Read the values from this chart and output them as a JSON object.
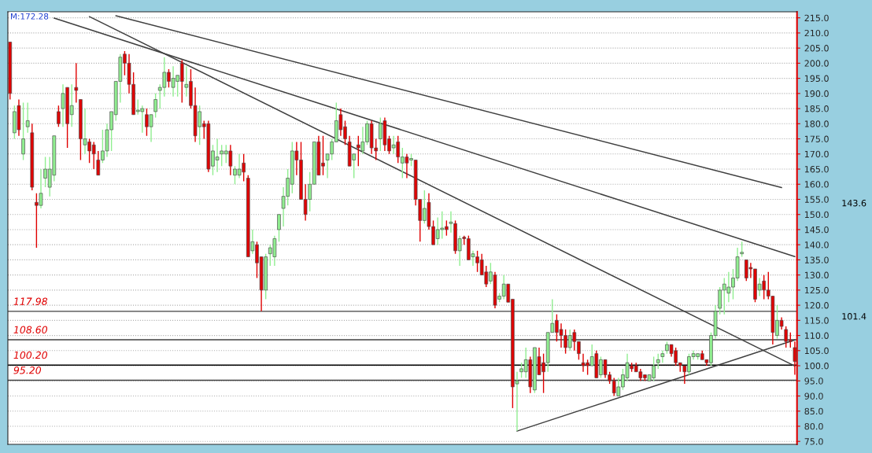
{
  "chart_data": {
    "type": "candlestick",
    "categories": [
      null,
      null,
      null,
      null,
      null,
      null,
      null,
      null,
      null,
      null,
      null,
      null,
      null,
      null,
      null,
      null,
      null,
      null,
      null,
      null,
      null,
      null,
      null,
      null,
      null,
      null,
      null,
      null,
      null,
      null,
      null,
      null,
      null,
      null,
      null,
      null,
      null,
      null,
      null,
      null,
      null,
      null,
      null,
      null,
      null,
      null,
      null,
      null,
      null,
      null,
      null,
      null,
      null,
      null,
      null,
      null,
      null,
      null,
      null,
      null,
      null,
      null,
      null,
      null,
      null,
      null,
      null,
      null,
      null,
      null,
      null,
      null,
      null,
      null,
      null,
      null,
      null,
      null,
      null,
      null,
      null,
      null,
      null,
      null,
      null,
      null,
      null,
      null,
      null,
      null,
      null,
      null,
      null,
      null,
      null,
      null,
      null,
      null,
      null,
      null,
      null,
      null,
      null,
      null,
      null,
      null,
      null,
      null,
      null,
      null,
      null,
      null,
      null,
      null,
      null,
      null,
      null,
      null,
      null,
      null,
      null,
      null,
      null,
      null,
      null,
      null,
      null,
      null,
      null,
      null,
      null,
      null,
      null,
      null,
      null,
      null,
      null,
      null,
      null,
      null,
      null,
      null,
      null,
      null,
      null,
      null,
      null,
      null,
      null,
      null,
      null,
      null,
      null,
      null,
      null,
      null,
      null,
      null,
      null,
      null,
      null,
      null,
      null,
      null,
      null,
      null,
      null,
      null,
      null,
      null,
      null,
      null,
      null,
      null,
      null,
      null,
      null,
      null,
      null
    ],
    "ohlc": [
      [
        207,
        207,
        188,
        190
      ],
      [
        177,
        186,
        175,
        184
      ],
      [
        186,
        188,
        176,
        178
      ],
      [
        170,
        187,
        168,
        175
      ],
      [
        179,
        187,
        177,
        181
      ],
      [
        177,
        180,
        158,
        159
      ],
      [
        154,
        157,
        139,
        153
      ],
      [
        153,
        165,
        152,
        157
      ],
      [
        162,
        169,
        159,
        165
      ],
      [
        159,
        169,
        156,
        165
      ],
      [
        163,
        176,
        161,
        176
      ],
      [
        184,
        186,
        179,
        180
      ],
      [
        185,
        193,
        179,
        190
      ],
      [
        192,
        192,
        172,
        180
      ],
      [
        183,
        193,
        179,
        186
      ],
      [
        192,
        200,
        187,
        191
      ],
      [
        188,
        188,
        168,
        175
      ],
      [
        173,
        185,
        170,
        175
      ],
      [
        174,
        175,
        167,
        171
      ],
      [
        173,
        174,
        165,
        170
      ],
      [
        168,
        171,
        163,
        163
      ],
      [
        168,
        178,
        167,
        171
      ],
      [
        171,
        180,
        169,
        178
      ],
      [
        178,
        184,
        171,
        184
      ],
      [
        183,
        194,
        181,
        194
      ],
      [
        194,
        203,
        187,
        202
      ],
      [
        203,
        204,
        196,
        200
      ],
      [
        200,
        203,
        190,
        193
      ],
      [
        193,
        197,
        183,
        183
      ],
      [
        184,
        188,
        183,
        184.5
      ],
      [
        184,
        186,
        177,
        185
      ],
      [
        183,
        185,
        176,
        179
      ],
      [
        179,
        183,
        174,
        183
      ],
      [
        184,
        190,
        182,
        188
      ],
      [
        191,
        193,
        185,
        192
      ],
      [
        192,
        202,
        189,
        197
      ],
      [
        197,
        198,
        192,
        194
      ],
      [
        192,
        199,
        189,
        195
      ],
      [
        194,
        196,
        189,
        196
      ],
      [
        200,
        201,
        187,
        194
      ],
      [
        192,
        199,
        189,
        193
      ],
      [
        194,
        198,
        185,
        186
      ],
      [
        186,
        192,
        174,
        176
      ],
      [
        179,
        186,
        173,
        184
      ],
      [
        180,
        181,
        175,
        179
      ],
      [
        180,
        181,
        164,
        165
      ],
      [
        166,
        173,
        163,
        171
      ],
      [
        168,
        175,
        164,
        169
      ],
      [
        170,
        173,
        166,
        171
      ],
      [
        170,
        173,
        167,
        171
      ],
      [
        171,
        173,
        163,
        166
      ],
      [
        163,
        166,
        160,
        165
      ],
      [
        163,
        170,
        162,
        165
      ],
      [
        167,
        170,
        161,
        164
      ],
      [
        162,
        163,
        136,
        136
      ],
      [
        138,
        145,
        137,
        141
      ],
      [
        140,
        141,
        129,
        134
      ],
      [
        136,
        136,
        118,
        125
      ],
      [
        125,
        137,
        122,
        136
      ],
      [
        137,
        140,
        133,
        139
      ],
      [
        136,
        143,
        133,
        142
      ],
      [
        145,
        150,
        141,
        150
      ],
      [
        152,
        159,
        146,
        156
      ],
      [
        156,
        165,
        153,
        162
      ],
      [
        160,
        174,
        157,
        171
      ],
      [
        171,
        174,
        163,
        168
      ],
      [
        168,
        174,
        155,
        155
      ],
      [
        155,
        160,
        148,
        150
      ],
      [
        155,
        164,
        151,
        160
      ],
      [
        160,
        174,
        160,
        174
      ],
      [
        174,
        176,
        163,
        163
      ],
      [
        167,
        176,
        163,
        166
      ],
      [
        168,
        170,
        162,
        170
      ],
      [
        170,
        175,
        168,
        174
      ],
      [
        174,
        187,
        174,
        181
      ],
      [
        183,
        185,
        176,
        178
      ],
      [
        179,
        181,
        173,
        175
      ],
      [
        174,
        176,
        166,
        166
      ],
      [
        168,
        170,
        162,
        170
      ],
      [
        173,
        176,
        166,
        172
      ],
      [
        171,
        179,
        170,
        174
      ],
      [
        174,
        181,
        173,
        180
      ],
      [
        180,
        181,
        170,
        172
      ],
      [
        172,
        175,
        168,
        171
      ],
      [
        175,
        182,
        171,
        180
      ],
      [
        181,
        182,
        171,
        173
      ],
      [
        175,
        176,
        170,
        171
      ],
      [
        172,
        176,
        170,
        173
      ],
      [
        174,
        176,
        167,
        169
      ],
      [
        167,
        172,
        162,
        169
      ],
      [
        169,
        170,
        162,
        167
      ],
      [
        168,
        170,
        166,
        168.5
      ],
      [
        168,
        168,
        153,
        155
      ],
      [
        155,
        155,
        141,
        148
      ],
      [
        148,
        158,
        147,
        152
      ],
      [
        154,
        157,
        145,
        146
      ],
      [
        146,
        148,
        140,
        140
      ],
      [
        142,
        149,
        140,
        145
      ],
      [
        145,
        151,
        142,
        145.5
      ],
      [
        146,
        148,
        143,
        145
      ],
      [
        147,
        151,
        144,
        147.5
      ],
      [
        147,
        148,
        137,
        138
      ],
      [
        138,
        143,
        133,
        142
      ],
      [
        142.5,
        143,
        140,
        142
      ],
      [
        142,
        143,
        135,
        135
      ],
      [
        136,
        138,
        133,
        137
      ],
      [
        136,
        138,
        131,
        134
      ],
      [
        135,
        137,
        130,
        130
      ],
      [
        131,
        133,
        126,
        127
      ],
      [
        128,
        134,
        127,
        131
      ],
      [
        130,
        131,
        119,
        120
      ],
      [
        122,
        124,
        121,
        123
      ],
      [
        123,
        130,
        122,
        127
      ],
      [
        127,
        127,
        121,
        121
      ],
      [
        122,
        122,
        86,
        93
      ],
      [
        94,
        98,
        78.5,
        95
      ],
      [
        98,
        101,
        96,
        99
      ],
      [
        98,
        106,
        96,
        102
      ],
      [
        102,
        103,
        91,
        93
      ],
      [
        92,
        106,
        91,
        106
      ],
      [
        103,
        106,
        97,
        97
      ],
      [
        101,
        104,
        91,
        98
      ],
      [
        101,
        111,
        98,
        111
      ],
      [
        111,
        122,
        111,
        114
      ],
      [
        115,
        117,
        108,
        111
      ],
      [
        112,
        114,
        106,
        110
      ],
      [
        110,
        112,
        104,
        106
      ],
      [
        106,
        112,
        105,
        110
      ],
      [
        111,
        112,
        105,
        108
      ],
      [
        108,
        108,
        102,
        104
      ],
      [
        101,
        104,
        98,
        100
      ],
      [
        101,
        102,
        97,
        100
      ],
      [
        100,
        107,
        100,
        103
      ],
      [
        104,
        105,
        96,
        96
      ],
      [
        97,
        103,
        96,
        102
      ],
      [
        102,
        102,
        96,
        97
      ],
      [
        97,
        98,
        94,
        95
      ],
      [
        95,
        96,
        90,
        91
      ],
      [
        90,
        96,
        90,
        93
      ],
      [
        93,
        99,
        92,
        97
      ],
      [
        96,
        104,
        95,
        101
      ],
      [
        100,
        101,
        98,
        99
      ],
      [
        100,
        101,
        98,
        98
      ],
      [
        98,
        99,
        95,
        96
      ],
      [
        97,
        97,
        95,
        96
      ],
      [
        95,
        97,
        95,
        97
      ],
      [
        96,
        103,
        95,
        100
      ],
      [
        101,
        104,
        99,
        102
      ],
      [
        103,
        105,
        101,
        104
      ],
      [
        105,
        108,
        104,
        107
      ],
      [
        107,
        107,
        103,
        104
      ],
      [
        105,
        106,
        100,
        101
      ],
      [
        101,
        101,
        98,
        100
      ],
      [
        100,
        100,
        94,
        98
      ],
      [
        98,
        104,
        97,
        103
      ],
      [
        103,
        105,
        102,
        104
      ],
      [
        103,
        104,
        102,
        104
      ],
      [
        104,
        105,
        102,
        102
      ],
      [
        102,
        102,
        100,
        101
      ],
      [
        101,
        111,
        100,
        110
      ],
      [
        110,
        120,
        109,
        118
      ],
      [
        119,
        126,
        117,
        125
      ],
      [
        125,
        129,
        117,
        127
      ],
      [
        124,
        131,
        121,
        126
      ],
      [
        126,
        132,
        122,
        129
      ],
      [
        129,
        139,
        128,
        136
      ],
      [
        137,
        141,
        136,
        137.5
      ],
      [
        135,
        135,
        128,
        129
      ],
      [
        132.5,
        134,
        129,
        132
      ],
      [
        132,
        132,
        121,
        122
      ],
      [
        125,
        129,
        123,
        127
      ],
      [
        128,
        130,
        122,
        125
      ],
      [
        125,
        131,
        122,
        123
      ],
      [
        123,
        123,
        107,
        111
      ],
      [
        110,
        120,
        109,
        115
      ],
      [
        115,
        116,
        112,
        113
      ],
      [
        112,
        113,
        106,
        108
      ],
      [
        108.5,
        111,
        106,
        108
      ],
      [
        106,
        108,
        97,
        101.4
      ]
    ],
    "colors": [
      "#e00000",
      "#90ee90",
      "#e00000",
      "#90ee90",
      "#90ee90",
      "#e00000",
      "#e00000",
      "#90ee90",
      "#90ee90",
      "#90ee90",
      "#90ee90",
      "#e00000",
      "#90ee90",
      "#e00000",
      "#90ee90",
      "#e00000",
      "#e00000",
      "#90ee90",
      "#e00000",
      "#e00000",
      "#e00000",
      "#90ee90",
      "#90ee90",
      "#90ee90",
      "#90ee90",
      "#90ee90",
      "#e00000",
      "#e00000",
      "#e00000",
      "#90ee90",
      "#90ee90",
      "#e00000",
      "#90ee90",
      "#90ee90",
      "#90ee90",
      "#90ee90",
      "#e00000",
      "#90ee90",
      "#90ee90",
      "#e00000",
      "#90ee90",
      "#e00000",
      "#e00000",
      "#90ee90",
      "#e00000",
      "#e00000",
      "#90ee90",
      "#90ee90",
      "#90ee90",
      "#90ee90",
      "#e00000",
      "#90ee90",
      "#90ee90",
      "#e00000",
      "#e00000",
      "#90ee90",
      "#e00000",
      "#e00000",
      "#90ee90",
      "#90ee90",
      "#90ee90",
      "#90ee90",
      "#90ee90",
      "#90ee90",
      "#90ee90",
      "#e00000",
      "#e00000",
      "#e00000",
      "#90ee90",
      "#90ee90",
      "#e00000",
      "#e00000",
      "#90ee90",
      "#90ee90",
      "#90ee90",
      "#e00000",
      "#e00000",
      "#e00000",
      "#90ee90",
      "#e00000",
      "#90ee90",
      "#90ee90",
      "#e00000",
      "#e00000",
      "#90ee90",
      "#e00000",
      "#e00000",
      "#90ee90",
      "#e00000",
      "#90ee90",
      "#e00000",
      "#90ee90",
      "#e00000",
      "#e00000",
      "#90ee90",
      "#e00000",
      "#e00000",
      "#90ee90",
      "#90ee90",
      "#e00000",
      "#90ee90",
      "#e00000",
      "#90ee90",
      "#e00000",
      "#e00000",
      "#90ee90",
      "#e00000",
      "#e00000",
      "#e00000",
      "#90ee90",
      "#e00000",
      "#90ee90",
      "#90ee90",
      "#e00000",
      "#e00000",
      "#90ee90",
      "#90ee90",
      "#90ee90",
      "#e00000",
      "#90ee90",
      "#e00000",
      "#e00000",
      "#90ee90",
      "#90ee90",
      "#e00000",
      "#e00000",
      "#e00000",
      "#90ee90",
      "#e00000",
      "#e00000",
      "#e00000",
      "#e00000",
      "#90ee90",
      "#e00000",
      "#90ee90",
      "#e00000",
      "#e00000",
      "#e00000",
      "#90ee90",
      "#90ee90",
      "#90ee90",
      "#e00000",
      "#e00000",
      "#e00000",
      "#e00000",
      "#90ee90",
      "#90ee90",
      "#90ee90",
      "#90ee90",
      "#90ee90",
      "#e00000",
      "#e00000",
      "#e00000",
      "#e00000",
      "#90ee90",
      "#90ee90",
      "#90ee90",
      "#e00000",
      "#e00000",
      "#90ee90",
      "#90ee90",
      "#90ee90",
      "#90ee90",
      "#90ee90",
      "#90ee90",
      "#90ee90",
      "#90ee90",
      "#e00000",
      "#e00000",
      "#e00000",
      "#90ee90",
      "#e00000",
      "#e00000",
      "#e00000",
      "#90ee90",
      "#e00000",
      "#e00000",
      "#e00000",
      "#e00000"
    ],
    "series": [
      {
        "type": "line",
        "color": "#404040",
        "values": [
          null,
          null,
          null,
          null,
          null,
          null,
          null,
          null,
          null,
          null,
          214.9,
          null,
          null,
          null,
          null,
          null,
          null,
          null,
          null,
          null,
          null,
          null,
          null,
          null,
          null,
          null,
          null,
          null,
          null,
          null,
          null,
          null,
          null,
          null,
          null,
          null,
          null,
          null,
          null,
          null,
          null,
          null,
          null,
          null,
          null,
          null,
          null,
          null,
          null,
          null,
          null,
          null,
          null,
          null,
          null,
          null,
          null,
          null,
          null,
          null,
          null,
          null,
          null,
          null,
          null,
          null,
          null,
          null,
          null,
          null,
          null,
          null,
          null,
          null,
          null,
          null,
          null,
          null,
          null,
          null,
          null,
          null,
          null,
          null,
          null,
          null,
          null,
          null,
          null,
          null,
          null,
          null,
          null,
          null,
          null,
          null,
          null,
          null,
          null,
          null,
          null,
          null,
          null,
          null,
          null,
          null,
          null,
          null,
          null,
          null,
          null,
          null,
          null,
          null,
          null,
          null,
          null,
          null,
          null,
          null,
          null,
          null,
          null,
          null,
          null,
          null,
          null,
          null,
          null,
          null,
          null,
          null,
          null,
          null,
          null,
          null,
          null,
          null,
          null,
          null,
          null,
          null,
          null,
          null,
          null,
          null,
          null,
          null,
          null,
          null,
          null,
          null,
          null,
          null,
          null,
          null,
          null,
          null,
          null,
          null,
          null,
          null,
          null,
          null,
          null,
          null,
          null,
          null,
          null,
          null,
          null,
          null,
          null,
          null,
          null,
          null,
          null,
          null,
          136.1
        ]
      },
      {
        "type": "line",
        "color": "#404040",
        "values": [
          null,
          null,
          null,
          null,
          null,
          null,
          null,
          null,
          null,
          null,
          null,
          null,
          null,
          null,
          null,
          null,
          null,
          null,
          215.4,
          null,
          null,
          null,
          null,
          null,
          null,
          null,
          null,
          null,
          null,
          null,
          null,
          null,
          null,
          null,
          null,
          null,
          null,
          null,
          null,
          null,
          null,
          null,
          null,
          null,
          null,
          null,
          null,
          null,
          null,
          null,
          null,
          null,
          null,
          null,
          null,
          null,
          null,
          null,
          null,
          null,
          null,
          null,
          null,
          null,
          null,
          null,
          null,
          null,
          null,
          null,
          null,
          null,
          null,
          null,
          null,
          null,
          null,
          null,
          null,
          null,
          null,
          null,
          null,
          null,
          null,
          null,
          null,
          null,
          null,
          null,
          null,
          null,
          null,
          null,
          null,
          null,
          null,
          null,
          null,
          null,
          null,
          null,
          null,
          null,
          null,
          null,
          null,
          null,
          null,
          null,
          null,
          null,
          null,
          null,
          null,
          null,
          null,
          null,
          null,
          null,
          null,
          null,
          null,
          null,
          null,
          null,
          null,
          null,
          null,
          null,
          null,
          null,
          null,
          null,
          null,
          null,
          null,
          null,
          null,
          null,
          null,
          null,
          null,
          null,
          null,
          null,
          null,
          null,
          null,
          null,
          null,
          null,
          null,
          null,
          null,
          null,
          null,
          null,
          null,
          null,
          null,
          null,
          null,
          null,
          null,
          null,
          null,
          null,
          null,
          null,
          null,
          null,
          null,
          null,
          null,
          null,
          null,
          null,
          99.9
        ]
      },
      {
        "type": "line",
        "color": "#404040",
        "values": [
          null,
          null,
          null,
          null,
          null,
          null,
          null,
          null,
          null,
          null,
          null,
          null,
          null,
          null,
          null,
          null,
          null,
          null,
          null,
          null,
          null,
          null,
          null,
          null,
          215.7,
          null,
          null,
          null,
          null,
          null,
          null,
          null,
          null,
          null,
          null,
          null,
          null,
          null,
          null,
          null,
          null,
          null,
          null,
          null,
          null,
          null,
          null,
          null,
          null,
          null,
          null,
          null,
          null,
          null,
          null,
          null,
          null,
          null,
          null,
          null,
          null,
          null,
          null,
          null,
          null,
          null,
          null,
          null,
          null,
          null,
          null,
          null,
          null,
          null,
          null,
          null,
          null,
          null,
          null,
          null,
          null,
          null,
          null,
          null,
          null,
          null,
          null,
          null,
          null,
          null,
          null,
          null,
          null,
          null,
          null,
          null,
          null,
          null,
          null,
          null,
          null,
          null,
          null,
          null,
          null,
          null,
          null,
          null,
          null,
          null,
          null,
          null,
          null,
          null,
          null,
          null,
          null,
          null,
          null,
          null,
          null,
          null,
          null,
          null,
          null,
          null,
          null,
          null,
          null,
          null,
          null,
          null,
          null,
          null,
          null,
          null,
          null,
          null,
          null,
          null,
          null,
          null,
          null,
          null,
          null,
          null,
          null,
          null,
          null,
          null,
          null,
          null,
          null,
          null,
          null,
          null,
          null,
          null,
          null,
          null,
          null,
          null,
          null,
          null,
          null,
          null,
          null,
          null,
          null,
          null,
          null,
          null,
          null,
          null,
          null,
          158.9,
          null,
          null,
          null
        ]
      },
      {
        "type": "line",
        "color": "#404040",
        "values": [
          null,
          null,
          null,
          null,
          null,
          null,
          null,
          null,
          null,
          null,
          null,
          null,
          null,
          null,
          null,
          null,
          null,
          null,
          null,
          null,
          null,
          null,
          null,
          null,
          null,
          null,
          null,
          null,
          null,
          null,
          null,
          null,
          null,
          null,
          null,
          null,
          null,
          null,
          null,
          null,
          null,
          null,
          null,
          null,
          null,
          null,
          null,
          null,
          null,
          null,
          null,
          null,
          null,
          null,
          null,
          null,
          null,
          null,
          null,
          null,
          null,
          null,
          null,
          null,
          null,
          null,
          null,
          null,
          null,
          null,
          null,
          null,
          null,
          null,
          null,
          null,
          null,
          null,
          null,
          null,
          null,
          null,
          null,
          null,
          null,
          null,
          null,
          null,
          null,
          null,
          null,
          null,
          null,
          null,
          null,
          null,
          null,
          null,
          null,
          null,
          null,
          null,
          null,
          null,
          null,
          null,
          null,
          null,
          null,
          null,
          null,
          null,
          null,
          null,
          null,
          78.4,
          null,
          null,
          null,
          null,
          null,
          null,
          null,
          null,
          null,
          null,
          null,
          null,
          null,
          null,
          null,
          null,
          null,
          null,
          null,
          null,
          null,
          null,
          null,
          null,
          null,
          null,
          null,
          null,
          null,
          null,
          null,
          null,
          null,
          null,
          null,
          null,
          null,
          null,
          null,
          null,
          null,
          null,
          null,
          null,
          null,
          null,
          null,
          null,
          null,
          null,
          null,
          null,
          null,
          null,
          null,
          null,
          null,
          null,
          null,
          null,
          null,
          null,
          108.5
        ]
      }
    ],
    "ref_lines": [
      {
        "axis": "y",
        "value": 117.98,
        "label": "117.98",
        "color": "#404040"
      },
      {
        "axis": "y",
        "value": 108.6,
        "label": "108.60",
        "color": "#404040"
      },
      {
        "axis": "y",
        "value": 100.2,
        "label": "100.20",
        "color": "#000000"
      },
      {
        "axis": "y",
        "value": 95.2,
        "label": "95.20",
        "color": "#404040"
      }
    ],
    "annotations": [
      "M:172.28",
      "143.6",
      "101.4"
    ],
    "ylim": [
      74,
      217
    ],
    "yticks": [
      {
        "value": 75,
        "label": "75.0"
      },
      {
        "value": 80,
        "label": "80.0"
      },
      {
        "value": 85,
        "label": "85.0"
      },
      {
        "value": 90,
        "label": "90.0"
      },
      {
        "value": 95,
        "label": "95.0"
      },
      {
        "value": 100,
        "label": "100.0"
      },
      {
        "value": 105,
        "label": "105.0"
      },
      {
        "value": 110,
        "label": "110.0"
      },
      {
        "value": 115,
        "label": "115.0"
      },
      {
        "value": 120,
        "label": "120.0"
      },
      {
        "value": 125,
        "label": "125.0"
      },
      {
        "value": 130,
        "label": "130.0"
      },
      {
        "value": 135,
        "label": "135.0"
      },
      {
        "value": 140,
        "label": "140.0"
      },
      {
        "value": 145,
        "label": "145.0"
      },
      {
        "value": 150,
        "label": "150.0"
      },
      {
        "value": 155,
        "label": "155.0"
      },
      {
        "value": 160,
        "label": "160.0"
      },
      {
        "value": 165,
        "label": "165.0"
      },
      {
        "value": 170,
        "label": "170.0"
      },
      {
        "value": 175,
        "label": "175.0"
      },
      {
        "value": 180,
        "label": "180.0"
      },
      {
        "value": 185,
        "label": "185.0"
      },
      {
        "value": 190,
        "label": "190.0"
      },
      {
        "value": 195,
        "label": "195.0"
      },
      {
        "value": 200,
        "label": "200.0"
      },
      {
        "value": 205,
        "label": "205.0"
      },
      {
        "value": 210,
        "label": "210.0"
      },
      {
        "value": 215,
        "label": "215.0"
      }
    ],
    "tick_labels": "y",
    "grid": "y"
  }
}
